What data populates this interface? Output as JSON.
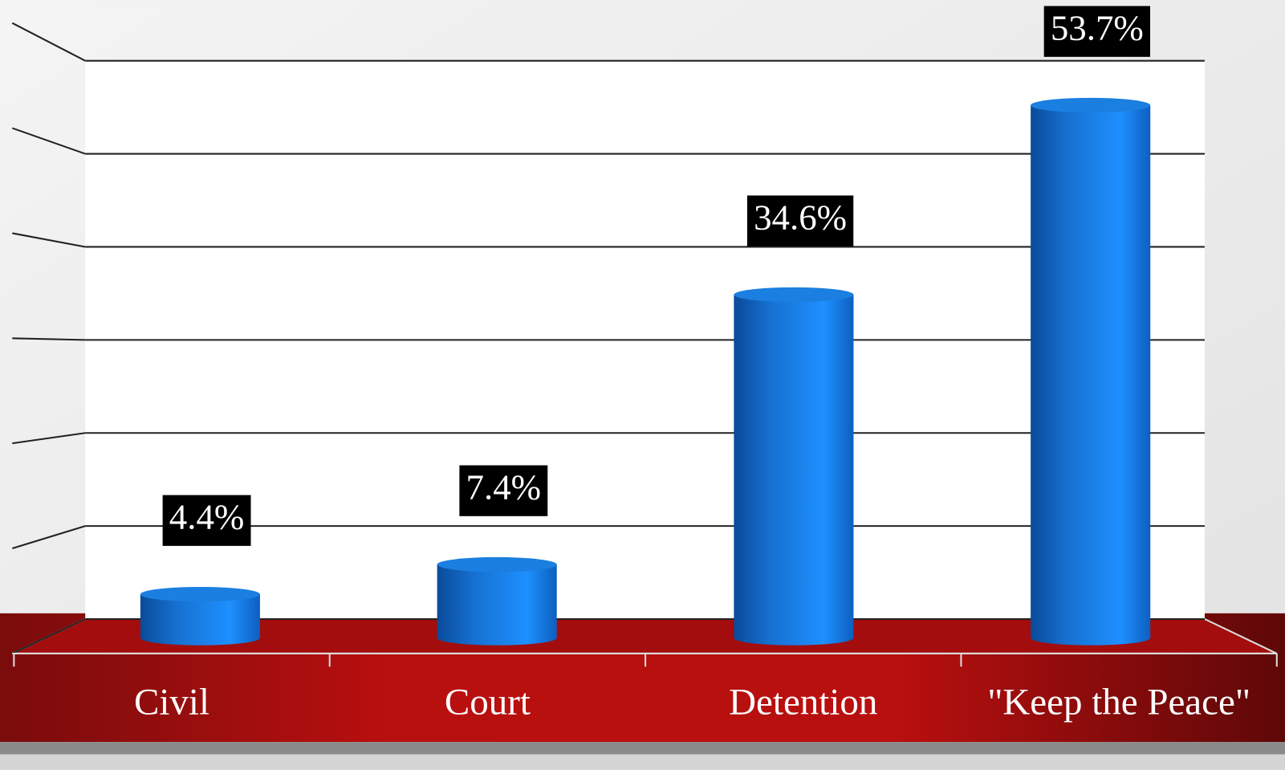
{
  "chart_data": {
    "type": "bar",
    "categories": [
      "Civil",
      "Court",
      "Detention",
      "\"Keep the Peace\""
    ],
    "values": [
      4.4,
      7.4,
      34.6,
      53.7
    ],
    "value_labels": [
      "4.4%",
      "7.4%",
      "34.6%",
      "53.7%"
    ],
    "color": "#1a7fe0",
    "ylim": [
      0,
      60
    ],
    "yticks": [
      0,
      10,
      20,
      30,
      40,
      50,
      60
    ],
    "grid": true
  }
}
